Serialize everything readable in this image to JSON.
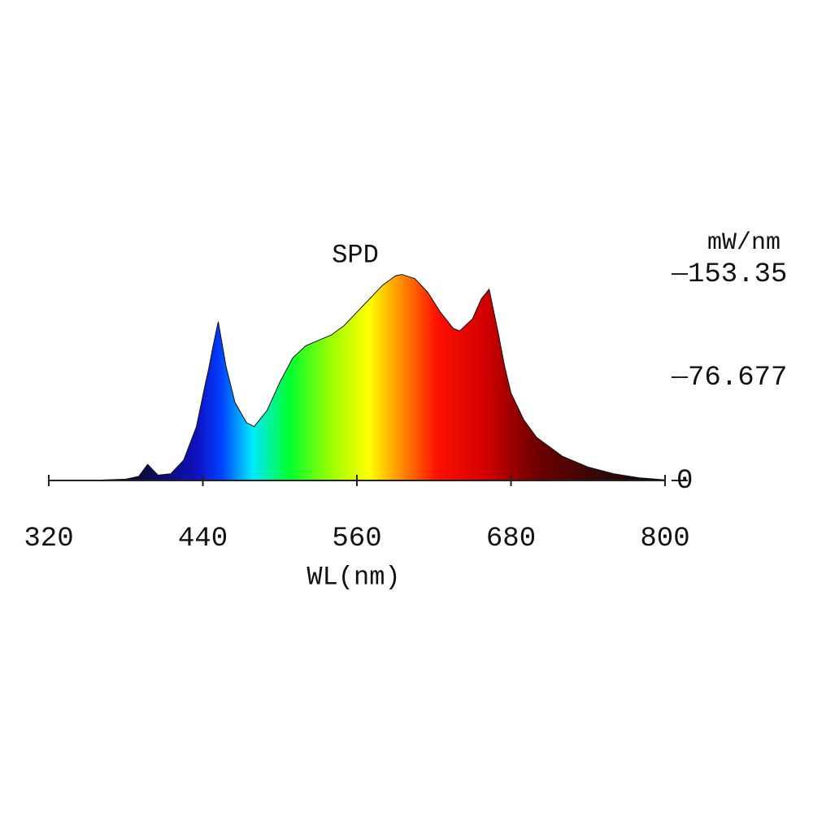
{
  "chart_data": {
    "type": "area",
    "title": "SPD",
    "x_label": "WL(nm)",
    "y_label": "mW/nm",
    "x": [
      320,
      360,
      380,
      390,
      397,
      405,
      415,
      425,
      435,
      442,
      445,
      448,
      452,
      458,
      465,
      474,
      480,
      490,
      500,
      510,
      520,
      540,
      550,
      560,
      570,
      580,
      590,
      595,
      605,
      615,
      625,
      635,
      640,
      650,
      657,
      663,
      670,
      675,
      680,
      690,
      700,
      720,
      740,
      760,
      780,
      800
    ],
    "values": [
      0,
      0.3,
      1,
      3,
      12,
      4,
      5,
      15,
      40,
      72,
      85,
      100,
      118,
      85,
      58,
      43,
      40,
      52,
      73,
      91,
      100,
      108,
      115,
      125,
      135,
      145,
      152,
      153,
      150,
      140,
      125,
      113,
      111,
      120,
      135,
      142,
      110,
      85,
      65,
      45,
      32,
      18,
      10,
      5,
      2,
      0.5
    ],
    "xlim": [
      320,
      800
    ],
    "xticks": [
      320,
      440,
      560,
      680,
      800
    ],
    "ylim": [
      0,
      153.35
    ],
    "yticks": [
      0,
      76.677,
      153.35
    ]
  }
}
